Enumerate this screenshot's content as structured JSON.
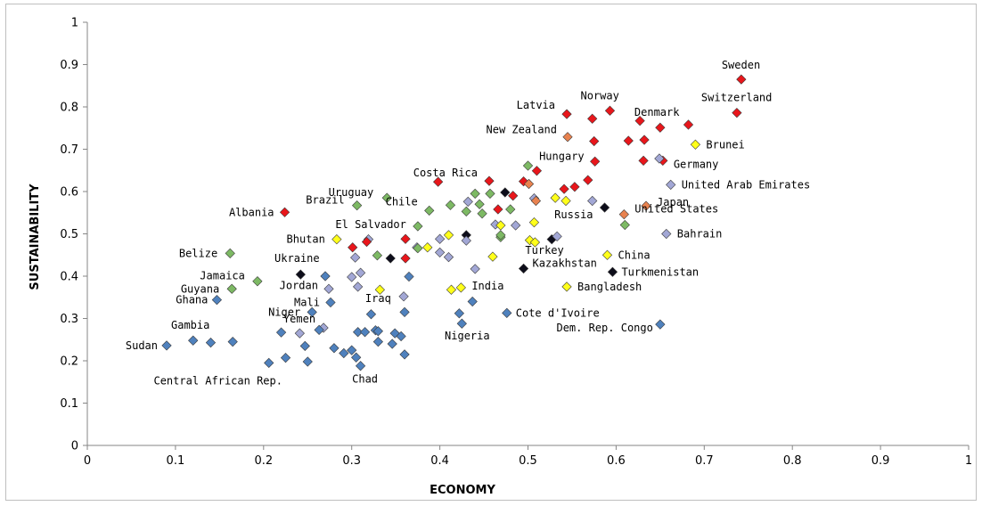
{
  "colors": {
    "red": "#e8161b",
    "orange": "#e8824f",
    "yellow": "#ffff1a",
    "green": "#7db964",
    "lavender": "#a2a7d5",
    "blue": "#4f81bd",
    "black": "#0d0d1a"
  },
  "chart_data": {
    "type": "scatter",
    "xlabel": "ECONOMY",
    "ylabel": "SUSTAINABILITY",
    "xlim": [
      0,
      1
    ],
    "ylim": [
      0,
      1
    ],
    "x_ticks": [
      "0",
      "0.1",
      "0.2",
      "0.3",
      "0.4",
      "0.5",
      "0.6",
      "0.7",
      "0.8",
      "0.9",
      "1"
    ],
    "y_ticks": [
      "0",
      "0.1",
      "0.2",
      "0.3",
      "0.4",
      "0.5",
      "0.6",
      "0.7",
      "0.8",
      "0.9",
      "1"
    ],
    "grid": false,
    "marker": "diamond",
    "points": [
      {
        "x": 0.742,
        "y": 0.865,
        "c": "red",
        "label": "Sweden"
      },
      {
        "x": 0.737,
        "y": 0.786,
        "c": "red",
        "label": "Switzerland"
      },
      {
        "x": 0.593,
        "y": 0.791,
        "c": "red",
        "label": "Norway"
      },
      {
        "x": 0.544,
        "y": 0.783,
        "c": "red",
        "label": "Latvia"
      },
      {
        "x": 0.573,
        "y": 0.772,
        "c": "red"
      },
      {
        "x": 0.627,
        "y": 0.767,
        "c": "red"
      },
      {
        "x": 0.682,
        "y": 0.758,
        "c": "red",
        "label": "Denmark"
      },
      {
        "x": 0.65,
        "y": 0.751,
        "c": "red"
      },
      {
        "x": 0.545,
        "y": 0.729,
        "c": "orange",
        "label": "New Zealand"
      },
      {
        "x": 0.632,
        "y": 0.722,
        "c": "red"
      },
      {
        "x": 0.614,
        "y": 0.72,
        "c": "red"
      },
      {
        "x": 0.575,
        "y": 0.719,
        "c": "red"
      },
      {
        "x": 0.69,
        "y": 0.711,
        "c": "yellow",
        "label": "Brunei"
      },
      {
        "x": 0.576,
        "y": 0.671,
        "c": "red",
        "label": "Hungary"
      },
      {
        "x": 0.631,
        "y": 0.673,
        "c": "red"
      },
      {
        "x": 0.653,
        "y": 0.673,
        "c": "red",
        "label": "Germany"
      },
      {
        "x": 0.649,
        "y": 0.678,
        "c": "lavender"
      },
      {
        "x": 0.5,
        "y": 0.661,
        "c": "green"
      },
      {
        "x": 0.51,
        "y": 0.649,
        "c": "red"
      },
      {
        "x": 0.456,
        "y": 0.625,
        "c": "red",
        "label": "Costa Rica"
      },
      {
        "x": 0.398,
        "y": 0.623,
        "c": "red"
      },
      {
        "x": 0.495,
        "y": 0.624,
        "c": "red"
      },
      {
        "x": 0.568,
        "y": 0.627,
        "c": "red"
      },
      {
        "x": 0.501,
        "y": 0.618,
        "c": "orange"
      },
      {
        "x": 0.553,
        "y": 0.611,
        "c": "red"
      },
      {
        "x": 0.541,
        "y": 0.606,
        "c": "red"
      },
      {
        "x": 0.662,
        "y": 0.616,
        "c": "lavender",
        "label": "United Arab Emirates"
      },
      {
        "x": 0.457,
        "y": 0.595,
        "c": "green"
      },
      {
        "x": 0.44,
        "y": 0.595,
        "c": "green"
      },
      {
        "x": 0.474,
        "y": 0.598,
        "c": "black"
      },
      {
        "x": 0.483,
        "y": 0.59,
        "c": "red"
      },
      {
        "x": 0.507,
        "y": 0.584,
        "c": "lavender"
      },
      {
        "x": 0.509,
        "y": 0.578,
        "c": "orange"
      },
      {
        "x": 0.531,
        "y": 0.585,
        "c": "yellow"
      },
      {
        "x": 0.543,
        "y": 0.578,
        "c": "yellow"
      },
      {
        "x": 0.573,
        "y": 0.578,
        "c": "lavender"
      },
      {
        "x": 0.34,
        "y": 0.585,
        "c": "green",
        "label": "Uruguay"
      },
      {
        "x": 0.432,
        "y": 0.576,
        "c": "lavender"
      },
      {
        "x": 0.412,
        "y": 0.568,
        "c": "green"
      },
      {
        "x": 0.445,
        "y": 0.57,
        "c": "green"
      },
      {
        "x": 0.306,
        "y": 0.567,
        "c": "green",
        "label": "Brazil"
      },
      {
        "x": 0.388,
        "y": 0.555,
        "c": "green",
        "label": "Chile"
      },
      {
        "x": 0.43,
        "y": 0.553,
        "c": "green"
      },
      {
        "x": 0.448,
        "y": 0.548,
        "c": "green"
      },
      {
        "x": 0.466,
        "y": 0.558,
        "c": "red"
      },
      {
        "x": 0.48,
        "y": 0.558,
        "c": "green"
      },
      {
        "x": 0.587,
        "y": 0.562,
        "c": "black",
        "label": "Russia"
      },
      {
        "x": 0.634,
        "y": 0.566,
        "c": "orange",
        "label": "Japan"
      },
      {
        "x": 0.609,
        "y": 0.546,
        "c": "orange",
        "label": "United States"
      },
      {
        "x": 0.224,
        "y": 0.551,
        "c": "red",
        "label": "Albania"
      },
      {
        "x": 0.375,
        "y": 0.518,
        "c": "green",
        "label": "El Salvador"
      },
      {
        "x": 0.463,
        "y": 0.522,
        "c": "lavender"
      },
      {
        "x": 0.469,
        "y": 0.52,
        "c": "yellow"
      },
      {
        "x": 0.486,
        "y": 0.52,
        "c": "lavender"
      },
      {
        "x": 0.507,
        "y": 0.527,
        "c": "yellow"
      },
      {
        "x": 0.61,
        "y": 0.521,
        "c": "green"
      },
      {
        "x": 0.657,
        "y": 0.5,
        "c": "lavender",
        "label": "Bahrain"
      },
      {
        "x": 0.283,
        "y": 0.487,
        "c": "yellow",
        "label": "Bhutan"
      },
      {
        "x": 0.319,
        "y": 0.487,
        "c": "lavender"
      },
      {
        "x": 0.317,
        "y": 0.481,
        "c": "red"
      },
      {
        "x": 0.361,
        "y": 0.488,
        "c": "red"
      },
      {
        "x": 0.4,
        "y": 0.488,
        "c": "lavender"
      },
      {
        "x": 0.41,
        "y": 0.497,
        "c": "yellow"
      },
      {
        "x": 0.43,
        "y": 0.497,
        "c": "black"
      },
      {
        "x": 0.43,
        "y": 0.484,
        "c": "lavender"
      },
      {
        "x": 0.469,
        "y": 0.492,
        "c": "green"
      },
      {
        "x": 0.469,
        "y": 0.497,
        "c": "green"
      },
      {
        "x": 0.502,
        "y": 0.485,
        "c": "yellow"
      },
      {
        "x": 0.508,
        "y": 0.48,
        "c": "yellow",
        "label": "Turkey"
      },
      {
        "x": 0.527,
        "y": 0.487,
        "c": "black"
      },
      {
        "x": 0.533,
        "y": 0.494,
        "c": "lavender"
      },
      {
        "x": 0.301,
        "y": 0.468,
        "c": "red"
      },
      {
        "x": 0.374,
        "y": 0.468,
        "c": "lavender"
      },
      {
        "x": 0.375,
        "y": 0.466,
        "c": "green"
      },
      {
        "x": 0.386,
        "y": 0.468,
        "c": "yellow"
      },
      {
        "x": 0.162,
        "y": 0.454,
        "c": "green",
        "label": "Belize"
      },
      {
        "x": 0.304,
        "y": 0.444,
        "c": "lavender"
      },
      {
        "x": 0.329,
        "y": 0.449,
        "c": "green"
      },
      {
        "x": 0.344,
        "y": 0.442,
        "c": "black"
      },
      {
        "x": 0.361,
        "y": 0.442,
        "c": "red"
      },
      {
        "x": 0.4,
        "y": 0.456,
        "c": "lavender"
      },
      {
        "x": 0.41,
        "y": 0.445,
        "c": "lavender"
      },
      {
        "x": 0.46,
        "y": 0.446,
        "c": "yellow"
      },
      {
        "x": 0.59,
        "y": 0.45,
        "c": "yellow",
        "label": "China"
      },
      {
        "x": 0.44,
        "y": 0.417,
        "c": "lavender"
      },
      {
        "x": 0.495,
        "y": 0.418,
        "c": "black",
        "label": "Kazakhstan"
      },
      {
        "x": 0.596,
        "y": 0.41,
        "c": "black",
        "label": "Turkmenistan"
      },
      {
        "x": 0.242,
        "y": 0.404,
        "c": "black",
        "label": "Ukraine"
      },
      {
        "x": 0.27,
        "y": 0.4,
        "c": "blue"
      },
      {
        "x": 0.31,
        "y": 0.408,
        "c": "lavender"
      },
      {
        "x": 0.3,
        "y": 0.398,
        "c": "lavender"
      },
      {
        "x": 0.365,
        "y": 0.399,
        "c": "blue"
      },
      {
        "x": 0.193,
        "y": 0.388,
        "c": "green",
        "label": "Jamaica"
      },
      {
        "x": 0.164,
        "y": 0.37,
        "c": "green",
        "label": "Guyana"
      },
      {
        "x": 0.274,
        "y": 0.37,
        "c": "lavender",
        "label": "Jordan"
      },
      {
        "x": 0.307,
        "y": 0.375,
        "c": "lavender"
      },
      {
        "x": 0.332,
        "y": 0.368,
        "c": "yellow",
        "label": "Iraq"
      },
      {
        "x": 0.413,
        "y": 0.368,
        "c": "yellow"
      },
      {
        "x": 0.424,
        "y": 0.373,
        "c": "yellow",
        "label": "India"
      },
      {
        "x": 0.544,
        "y": 0.375,
        "c": "yellow",
        "label": "Bangladesh"
      },
      {
        "x": 0.147,
        "y": 0.344,
        "c": "blue",
        "label": "Ghana"
      },
      {
        "x": 0.276,
        "y": 0.338,
        "c": "blue",
        "label": "Mali"
      },
      {
        "x": 0.359,
        "y": 0.352,
        "c": "lavender"
      },
      {
        "x": 0.437,
        "y": 0.34,
        "c": "blue"
      },
      {
        "x": 0.255,
        "y": 0.315,
        "c": "blue",
        "label": "Niger"
      },
      {
        "x": 0.322,
        "y": 0.31,
        "c": "blue"
      },
      {
        "x": 0.36,
        "y": 0.315,
        "c": "blue"
      },
      {
        "x": 0.422,
        "y": 0.312,
        "c": "blue"
      },
      {
        "x": 0.476,
        "y": 0.313,
        "c": "blue",
        "label": "Cote d'Ivoire"
      },
      {
        "x": 0.425,
        "y": 0.288,
        "c": "blue",
        "label": "Nigeria"
      },
      {
        "x": 0.65,
        "y": 0.286,
        "c": "blue",
        "label": "Dem. Rep. Congo"
      },
      {
        "x": 0.268,
        "y": 0.278,
        "c": "lavender",
        "label": "Yemen"
      },
      {
        "x": 0.241,
        "y": 0.265,
        "c": "lavender"
      },
      {
        "x": 0.22,
        "y": 0.267,
        "c": "blue"
      },
      {
        "x": 0.263,
        "y": 0.273,
        "c": "blue"
      },
      {
        "x": 0.307,
        "y": 0.268,
        "c": "blue"
      },
      {
        "x": 0.315,
        "y": 0.268,
        "c": "blue"
      },
      {
        "x": 0.327,
        "y": 0.272,
        "c": "blue"
      },
      {
        "x": 0.33,
        "y": 0.27,
        "c": "blue"
      },
      {
        "x": 0.349,
        "y": 0.265,
        "c": "blue"
      },
      {
        "x": 0.356,
        "y": 0.258,
        "c": "blue"
      },
      {
        "x": 0.12,
        "y": 0.248,
        "c": "blue",
        "label": "Gambia"
      },
      {
        "x": 0.14,
        "y": 0.243,
        "c": "blue"
      },
      {
        "x": 0.165,
        "y": 0.245,
        "c": "blue"
      },
      {
        "x": 0.247,
        "y": 0.235,
        "c": "blue"
      },
      {
        "x": 0.33,
        "y": 0.245,
        "c": "blue"
      },
      {
        "x": 0.346,
        "y": 0.24,
        "c": "blue"
      },
      {
        "x": 0.09,
        "y": 0.236,
        "c": "blue",
        "label": "Sudan"
      },
      {
        "x": 0.28,
        "y": 0.23,
        "c": "blue"
      },
      {
        "x": 0.291,
        "y": 0.218,
        "c": "blue"
      },
      {
        "x": 0.3,
        "y": 0.225,
        "c": "blue"
      },
      {
        "x": 0.36,
        "y": 0.215,
        "c": "blue"
      },
      {
        "x": 0.225,
        "y": 0.207,
        "c": "blue"
      },
      {
        "x": 0.305,
        "y": 0.208,
        "c": "blue"
      },
      {
        "x": 0.206,
        "y": 0.195,
        "c": "blue",
        "label": "Central African Rep."
      },
      {
        "x": 0.25,
        "y": 0.198,
        "c": "blue"
      },
      {
        "x": 0.31,
        "y": 0.188,
        "c": "blue",
        "label": "Chad"
      }
    ]
  }
}
